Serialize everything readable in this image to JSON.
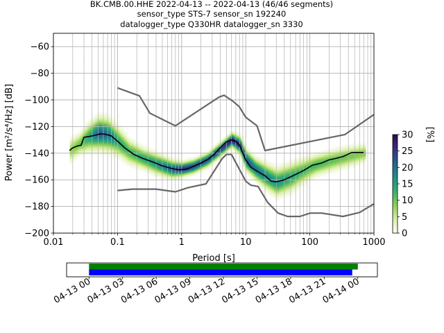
{
  "chart_data": [
    {
      "type": "heatmap",
      "title_lines": [
        "BK.CMB.00.HHE   2022-04-13 -- 2022-04-13  (46/46 segments)",
        "sensor_type STS-7 sensor_sn 192240",
        "datalogger_type Q330HR datalogger_sn 3330"
      ],
      "xlabel": "Period [s]",
      "ylabel": "Power [m²/s⁴/Hz] [dB]",
      "xscale": "log",
      "xlim": [
        0.01,
        1000
      ],
      "ylim": [
        -200,
        -50
      ],
      "xticks": [
        {
          "v": 0.01,
          "label": "0.01"
        },
        {
          "v": 0.1,
          "label": "0.1"
        },
        {
          "v": 1,
          "label": "1"
        },
        {
          "v": 10,
          "label": "10"
        },
        {
          "v": 100,
          "label": "100"
        },
        {
          "v": 1000,
          "label": "1000"
        }
      ],
      "yticks": [
        {
          "v": -60,
          "label": "−60"
        },
        {
          "v": -80,
          "label": "−80"
        },
        {
          "v": -100,
          "label": "−100"
        },
        {
          "v": -120,
          "label": "−120"
        },
        {
          "v": -140,
          "label": "−140"
        },
        {
          "v": -160,
          "label": "−160"
        },
        {
          "v": -180,
          "label": "−180"
        },
        {
          "v": -200,
          "label": "−200"
        }
      ],
      "grid": true,
      "colorbar": {
        "label": "[%]",
        "range": [
          0,
          30
        ],
        "ticks": [
          0,
          5,
          10,
          15,
          20,
          25,
          30
        ],
        "colors": [
          "#ffffff",
          "#d7ef9f",
          "#8ccf4f",
          "#33b071",
          "#1f8e8a",
          "#27608f",
          "#3a2f80",
          "#300a4d"
        ]
      },
      "series": [
        {
          "name": "New High Noise Model",
          "color": "#666666",
          "points": [
            [
              0.1,
              -91
            ],
            [
              0.22,
              -97
            ],
            [
              0.32,
              -110
            ],
            [
              0.8,
              -119.5
            ],
            [
              3.8,
              -98
            ],
            [
              4.6,
              -96.5
            ],
            [
              6.3,
              -101
            ],
            [
              7.9,
              -105
            ],
            [
              10,
              -113
            ],
            [
              15,
              -119.5
            ],
            [
              20,
              -138
            ],
            [
              354,
              -126
            ],
            [
              1000,
              -111
            ]
          ]
        },
        {
          "name": "New Low Noise Model",
          "color": "#666666",
          "points": [
            [
              0.1,
              -168
            ],
            [
              0.17,
              -167
            ],
            [
              0.4,
              -167
            ],
            [
              0.8,
              -169
            ],
            [
              1.24,
              -166
            ],
            [
              2.4,
              -163
            ],
            [
              4.3,
              -144
            ],
            [
              5,
              -141
            ],
            [
              6,
              -141
            ],
            [
              10,
              -161
            ],
            [
              12,
              -164
            ],
            [
              15.6,
              -165
            ],
            [
              22,
              -177
            ],
            [
              32,
              -185
            ],
            [
              45,
              -187.5
            ],
            [
              70,
              -187.5
            ],
            [
              101,
              -185
            ],
            [
              154,
              -185
            ],
            [
              328,
              -187.5
            ],
            [
              600,
              -184.5
            ],
            [
              1000,
              -178
            ]
          ]
        },
        {
          "name": "Mode",
          "color": "#000000",
          "points": [
            [
              0.0178,
              -138
            ],
            [
              0.02,
              -136
            ],
            [
              0.024,
              -134.5
            ],
            [
              0.027,
              -134
            ],
            [
              0.03,
              -128
            ],
            [
              0.036,
              -127.5
            ],
            [
              0.045,
              -126.5
            ],
            [
              0.054,
              -125.5
            ],
            [
              0.064,
              -125.8
            ],
            [
              0.08,
              -127
            ],
            [
              0.1,
              -131
            ],
            [
              0.13,
              -136
            ],
            [
              0.18,
              -141
            ],
            [
              0.25,
              -144
            ],
            [
              0.35,
              -146.5
            ],
            [
              0.5,
              -149.5
            ],
            [
              0.7,
              -151.5
            ],
            [
              0.9,
              -152.5
            ],
            [
              1.2,
              -152
            ],
            [
              1.5,
              -150
            ],
            [
              2,
              -147.5
            ],
            [
              2.6,
              -144.5
            ],
            [
              3.2,
              -141
            ],
            [
              4,
              -136
            ],
            [
              5,
              -131.5
            ],
            [
              6,
              -130
            ],
            [
              7,
              -131
            ],
            [
              8,
              -134
            ],
            [
              10,
              -145
            ],
            [
              12,
              -150.5
            ],
            [
              15,
              -153.5
            ],
            [
              20,
              -157
            ],
            [
              25,
              -161
            ],
            [
              30,
              -161.5
            ],
            [
              40,
              -160
            ],
            [
              60,
              -156
            ],
            [
              80,
              -153
            ],
            [
              110,
              -149
            ],
            [
              150,
              -147.5
            ],
            [
              200,
              -145
            ],
            [
              250,
              -144
            ],
            [
              330,
              -142.5
            ],
            [
              450,
              -139.5
            ],
            [
              690,
              -139.5
            ]
          ]
        }
      ],
      "density_band": {
        "description_free": true,
        "periods": [
          0.018,
          0.025,
          0.035,
          0.05,
          0.07,
          0.1,
          0.15,
          0.25,
          0.4,
          0.7,
          1,
          1.5,
          2.5,
          4,
          6,
          8,
          10,
          14,
          20,
          30,
          50,
          80,
          120,
          200,
          350,
          700
        ],
        "center": [
          -138,
          -133,
          -128,
          -125,
          -126,
          -131,
          -139,
          -144,
          -148,
          -152,
          -152,
          -150,
          -145,
          -137,
          -130,
          -134,
          -145,
          -152,
          -157,
          -162,
          -158,
          -153,
          -149,
          -146,
          -143,
          -140
        ],
        "spread": [
          7,
          6,
          8,
          9,
          9,
          8,
          7,
          6,
          6,
          5,
          4,
          4,
          4,
          4,
          4,
          5,
          6,
          6,
          7,
          8,
          8,
          7,
          6,
          6,
          6,
          5
        ],
        "peak_percent": [
          8,
          10,
          14,
          22,
          20,
          14,
          12,
          14,
          16,
          22,
          26,
          24,
          22,
          24,
          28,
          26,
          22,
          20,
          18,
          16,
          14,
          12,
          12,
          11,
          10,
          9
        ]
      }
    },
    {
      "type": "bar",
      "title": "",
      "xlabel": "",
      "xlim": [
        "2022-04-12T22:00",
        "2022-04-14T01:45"
      ],
      "xticks": [
        {
          "t": "2022-04-13T00:00",
          "label": "04-13 00"
        },
        {
          "t": "2022-04-13T03:00",
          "label": "04-13 03"
        },
        {
          "t": "2022-04-13T06:00",
          "label": "04-13 06"
        },
        {
          "t": "2022-04-13T09:00",
          "label": "04-13 09"
        },
        {
          "t": "2022-04-13T12:00",
          "label": "04-13 12"
        },
        {
          "t": "2022-04-13T15:00",
          "label": "04-13 15"
        },
        {
          "t": "2022-04-13T18:00",
          "label": "04-13 18"
        },
        {
          "t": "2022-04-13T21:00",
          "label": "04-13 21"
        },
        {
          "t": "2022-04-14T00:00",
          "label": "04-14 00"
        }
      ],
      "bars": [
        {
          "start": "2022-04-13T00:00",
          "end": "2022-04-14T00:00",
          "color": "#008000"
        },
        {
          "start": "2022-04-13T00:00",
          "end": "2022-04-13T23:30",
          "color": "#0000ff"
        }
      ]
    }
  ]
}
